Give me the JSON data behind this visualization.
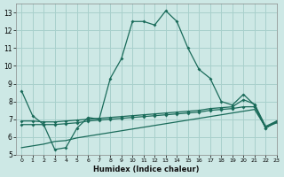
{
  "title": "",
  "xlabel": "Humidex (Indice chaleur)",
  "bg_color": "#cde8e5",
  "grid_color": "#a8d0cc",
  "line_color": "#1a6b5a",
  "xlim": [
    -0.5,
    23
  ],
  "ylim": [
    5,
    13.5
  ],
  "xtick_labels": [
    "0",
    "1",
    "2",
    "3",
    "4",
    "5",
    "6",
    "7",
    "8",
    "9",
    "10",
    "11",
    "12",
    "13",
    "14",
    "15",
    "16",
    "17",
    "18",
    "19",
    "20",
    "21",
    "22",
    "23"
  ],
  "ytick_labels": [
    "5",
    "6",
    "7",
    "8",
    "9",
    "10",
    "11",
    "12",
    "13"
  ],
  "ytick_vals": [
    5,
    6,
    7,
    8,
    9,
    10,
    11,
    12,
    13
  ],
  "series1_x": [
    0,
    1,
    2,
    3,
    4,
    5,
    6,
    7,
    8,
    9,
    10,
    11,
    12,
    13,
    14,
    15,
    16,
    17,
    18,
    19,
    20,
    21,
    22,
    23
  ],
  "series1_y": [
    8.6,
    7.2,
    6.7,
    5.3,
    5.4,
    6.5,
    7.1,
    7.0,
    9.3,
    10.4,
    12.5,
    12.5,
    12.3,
    13.1,
    12.5,
    11.0,
    9.8,
    9.3,
    8.0,
    7.8,
    8.4,
    7.8,
    6.5,
    6.9
  ],
  "series2_x": [
    0,
    1,
    2,
    3,
    4,
    5,
    6,
    7,
    8,
    9,
    10,
    11,
    12,
    13,
    14,
    15,
    16,
    17,
    18,
    19,
    20,
    21,
    22,
    23
  ],
  "series2_y": [
    6.9,
    6.9,
    6.85,
    6.85,
    6.9,
    6.95,
    7.0,
    7.05,
    7.1,
    7.15,
    7.2,
    7.25,
    7.3,
    7.35,
    7.4,
    7.45,
    7.5,
    7.6,
    7.65,
    7.7,
    8.1,
    7.85,
    6.6,
    6.9
  ],
  "series3_x": [
    0,
    1,
    2,
    3,
    4,
    5,
    6,
    7,
    8,
    9,
    10,
    11,
    12,
    13,
    14,
    15,
    16,
    17,
    18,
    19,
    20,
    21,
    22,
    23
  ],
  "series3_y": [
    6.7,
    6.7,
    6.7,
    6.7,
    6.75,
    6.8,
    6.9,
    6.95,
    7.0,
    7.05,
    7.1,
    7.15,
    7.2,
    7.25,
    7.3,
    7.35,
    7.4,
    7.5,
    7.55,
    7.6,
    7.7,
    7.7,
    6.5,
    6.85
  ],
  "series4_x": [
    0,
    1,
    2,
    3,
    4,
    5,
    6,
    7,
    8,
    9,
    10,
    11,
    12,
    13,
    14,
    15,
    16,
    17,
    18,
    19,
    20,
    21,
    22,
    23
  ],
  "series4_y": [
    5.4,
    5.5,
    5.6,
    5.75,
    5.8,
    5.95,
    6.05,
    6.15,
    6.25,
    6.35,
    6.45,
    6.55,
    6.65,
    6.75,
    6.85,
    6.95,
    7.05,
    7.15,
    7.25,
    7.35,
    7.45,
    7.55,
    6.55,
    6.8
  ]
}
